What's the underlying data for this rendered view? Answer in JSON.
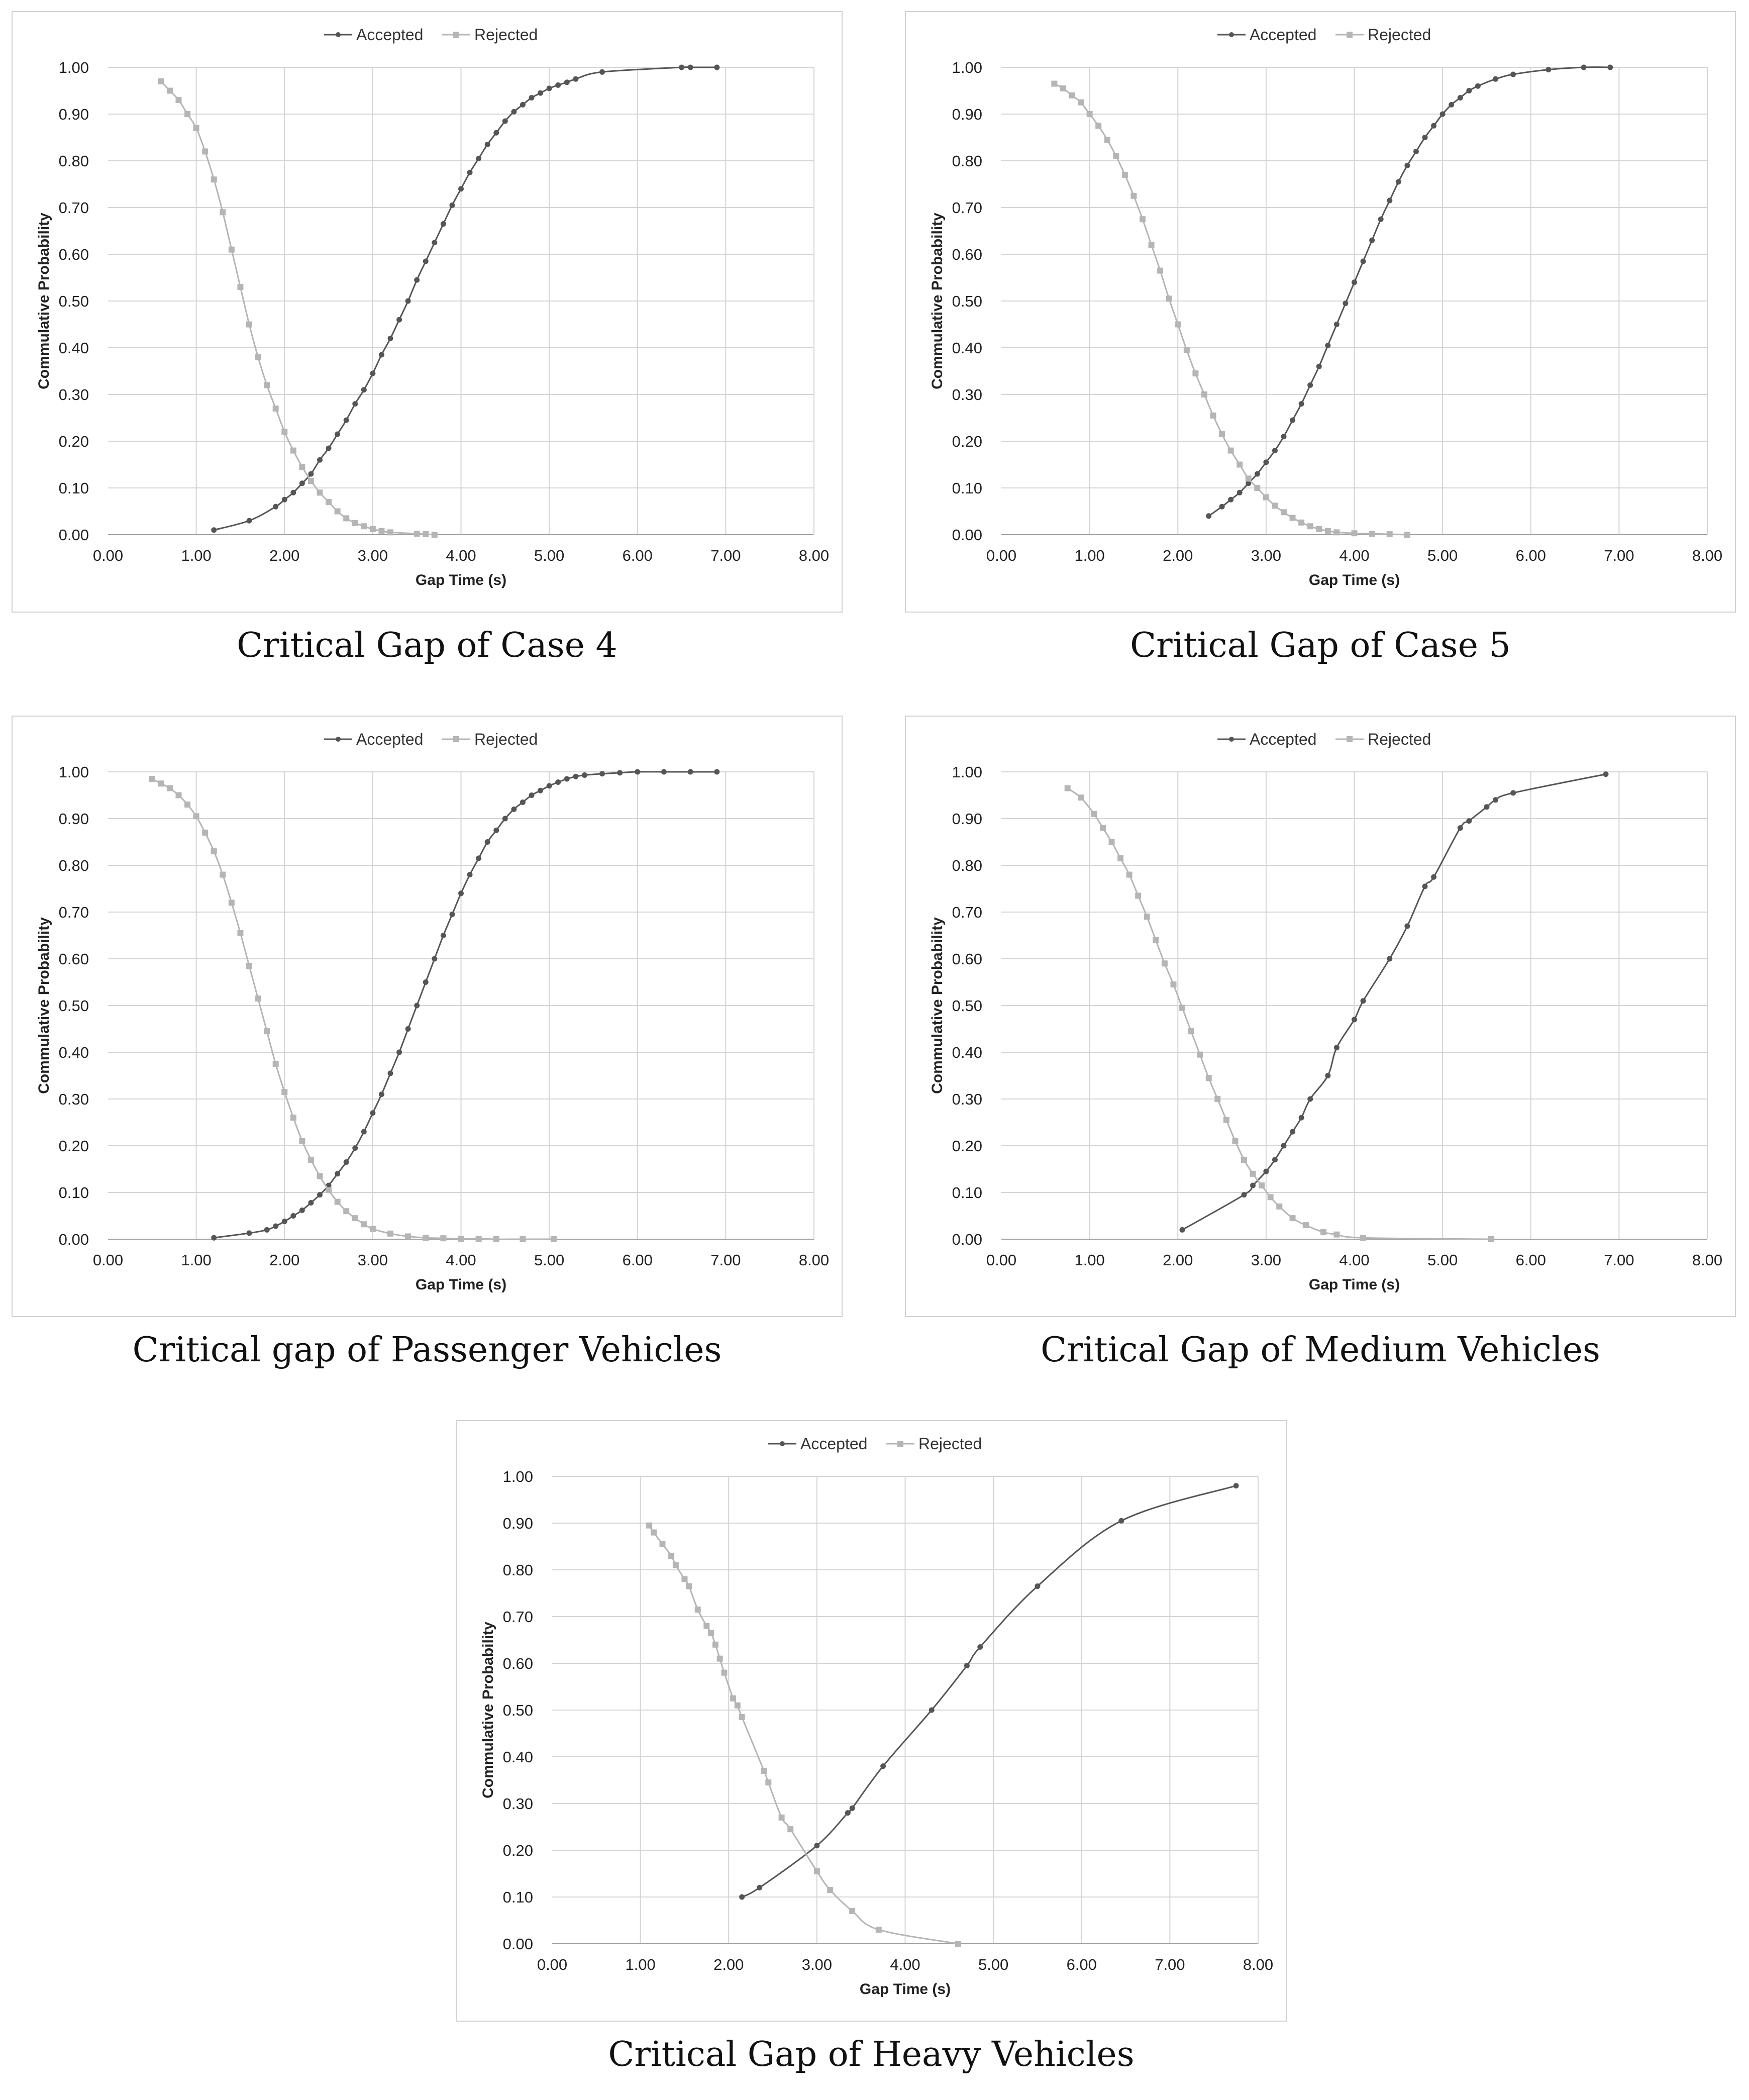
{
  "chart_data": [
    {
      "type": "line",
      "caption": "Critical Gap of Case 4",
      "xlabel": "Gap Time (s)",
      "ylabel": "Commulative Probability",
      "xlim": [
        0,
        8
      ],
      "ylim": [
        0,
        1
      ],
      "xticks": [
        "0.00",
        "1.00",
        "2.00",
        "3.00",
        "4.00",
        "5.00",
        "6.00",
        "7.00",
        "8.00"
      ],
      "yticks": [
        "0.00",
        "0.10",
        "0.20",
        "0.30",
        "0.40",
        "0.50",
        "0.60",
        "0.70",
        "0.80",
        "0.90",
        "1.00"
      ],
      "legend": [
        "Accepted",
        "Rejected"
      ],
      "series": [
        {
          "name": "Accepted",
          "color": "#555555",
          "x": [
            1.2,
            1.6,
            1.9,
            2.0,
            2.1,
            2.2,
            2.3,
            2.4,
            2.5,
            2.6,
            2.7,
            2.8,
            2.9,
            3.0,
            3.1,
            3.2,
            3.3,
            3.4,
            3.5,
            3.6,
            3.7,
            3.8,
            3.9,
            4.0,
            4.1,
            4.2,
            4.3,
            4.4,
            4.5,
            4.6,
            4.7,
            4.8,
            4.9,
            5.0,
            5.1,
            5.2,
            5.3,
            5.6,
            6.5,
            6.6,
            6.9
          ],
          "y": [
            0.01,
            0.03,
            0.06,
            0.075,
            0.09,
            0.11,
            0.13,
            0.16,
            0.185,
            0.215,
            0.245,
            0.28,
            0.31,
            0.345,
            0.385,
            0.42,
            0.46,
            0.5,
            0.545,
            0.585,
            0.625,
            0.665,
            0.705,
            0.74,
            0.775,
            0.805,
            0.835,
            0.86,
            0.885,
            0.905,
            0.92,
            0.935,
            0.945,
            0.955,
            0.962,
            0.968,
            0.975,
            0.99,
            1.0,
            1.0,
            1.0
          ]
        },
        {
          "name": "Rejected",
          "color": "#b5b5b5",
          "x": [
            0.6,
            0.7,
            0.8,
            0.9,
            1.0,
            1.1,
            1.2,
            1.3,
            1.4,
            1.5,
            1.6,
            1.7,
            1.8,
            1.9,
            2.0,
            2.1,
            2.2,
            2.3,
            2.4,
            2.5,
            2.6,
            2.7,
            2.8,
            2.9,
            3.0,
            3.1,
            3.2,
            3.5,
            3.6,
            3.7
          ],
          "y": [
            0.97,
            0.95,
            0.93,
            0.9,
            0.87,
            0.82,
            0.76,
            0.69,
            0.61,
            0.53,
            0.45,
            0.38,
            0.32,
            0.27,
            0.22,
            0.18,
            0.145,
            0.115,
            0.09,
            0.07,
            0.05,
            0.035,
            0.025,
            0.018,
            0.012,
            0.008,
            0.005,
            0.002,
            0.001,
            0.0
          ]
        }
      ]
    },
    {
      "type": "line",
      "caption": "Critical Gap of Case 5",
      "xlabel": "Gap Time (s)",
      "ylabel": "Commulative Probability",
      "xlim": [
        0,
        8
      ],
      "ylim": [
        0,
        1
      ],
      "xticks": [
        "0.00",
        "1.00",
        "2.00",
        "3.00",
        "4.00",
        "5.00",
        "6.00",
        "7.00",
        "8.00"
      ],
      "yticks": [
        "0.00",
        "0.10",
        "0.20",
        "0.30",
        "0.40",
        "0.50",
        "0.60",
        "0.70",
        "0.80",
        "0.90",
        "1.00"
      ],
      "legend": [
        "Accepted",
        "Rejected"
      ],
      "series": [
        {
          "name": "Accepted",
          "color": "#555555",
          "x": [
            2.35,
            2.5,
            2.6,
            2.7,
            2.8,
            2.9,
            3.0,
            3.1,
            3.2,
            3.3,
            3.4,
            3.5,
            3.6,
            3.7,
            3.8,
            3.9,
            4.0,
            4.1,
            4.2,
            4.3,
            4.4,
            4.5,
            4.6,
            4.7,
            4.8,
            4.9,
            5.0,
            5.1,
            5.2,
            5.3,
            5.4,
            5.6,
            5.8,
            6.2,
            6.6,
            6.9
          ],
          "y": [
            0.04,
            0.06,
            0.075,
            0.09,
            0.11,
            0.13,
            0.155,
            0.18,
            0.21,
            0.245,
            0.28,
            0.32,
            0.36,
            0.405,
            0.45,
            0.495,
            0.54,
            0.585,
            0.63,
            0.675,
            0.715,
            0.755,
            0.79,
            0.82,
            0.85,
            0.875,
            0.9,
            0.92,
            0.935,
            0.95,
            0.96,
            0.975,
            0.985,
            0.995,
            1.0,
            1.0
          ]
        },
        {
          "name": "Rejected",
          "color": "#b5b5b5",
          "x": [
            0.6,
            0.7,
            0.8,
            0.9,
            1.0,
            1.1,
            1.2,
            1.3,
            1.4,
            1.5,
            1.6,
            1.7,
            1.8,
            1.9,
            2.0,
            2.1,
            2.2,
            2.3,
            2.4,
            2.5,
            2.6,
            2.7,
            2.8,
            2.9,
            3.0,
            3.1,
            3.2,
            3.3,
            3.4,
            3.5,
            3.6,
            3.7,
            3.8,
            4.0,
            4.2,
            4.4,
            4.6
          ],
          "y": [
            0.965,
            0.955,
            0.94,
            0.925,
            0.9,
            0.875,
            0.845,
            0.81,
            0.77,
            0.725,
            0.675,
            0.62,
            0.565,
            0.505,
            0.45,
            0.395,
            0.345,
            0.3,
            0.255,
            0.215,
            0.18,
            0.15,
            0.12,
            0.1,
            0.08,
            0.062,
            0.048,
            0.036,
            0.026,
            0.018,
            0.012,
            0.008,
            0.005,
            0.003,
            0.002,
            0.001,
            0.0
          ]
        }
      ]
    },
    {
      "type": "line",
      "caption": "Critical gap of Passenger Vehicles",
      "xlabel": "Gap Time (s)",
      "ylabel": "Commulative Probability",
      "xlim": [
        0,
        8
      ],
      "ylim": [
        0,
        1
      ],
      "xticks": [
        "0.00",
        "1.00",
        "2.00",
        "3.00",
        "4.00",
        "5.00",
        "6.00",
        "7.00",
        "8.00"
      ],
      "yticks": [
        "0.00",
        "0.10",
        "0.20",
        "0.30",
        "0.40",
        "0.50",
        "0.60",
        "0.70",
        "0.80",
        "0.90",
        "1.00"
      ],
      "legend": [
        "Accepted",
        "Rejected"
      ],
      "series": [
        {
          "name": "Accepted",
          "color": "#555555",
          "x": [
            1.2,
            1.6,
            1.8,
            1.9,
            2.0,
            2.1,
            2.2,
            2.3,
            2.4,
            2.5,
            2.6,
            2.7,
            2.8,
            2.9,
            3.0,
            3.1,
            3.2,
            3.3,
            3.4,
            3.5,
            3.6,
            3.7,
            3.8,
            3.9,
            4.0,
            4.1,
            4.2,
            4.3,
            4.4,
            4.5,
            4.6,
            4.7,
            4.8,
            4.9,
            5.0,
            5.1,
            5.2,
            5.3,
            5.4,
            5.6,
            5.8,
            6.0,
            6.3,
            6.6,
            6.9
          ],
          "y": [
            0.003,
            0.013,
            0.02,
            0.028,
            0.038,
            0.05,
            0.062,
            0.078,
            0.095,
            0.115,
            0.14,
            0.165,
            0.195,
            0.23,
            0.27,
            0.31,
            0.355,
            0.4,
            0.45,
            0.5,
            0.55,
            0.6,
            0.65,
            0.695,
            0.74,
            0.78,
            0.815,
            0.85,
            0.875,
            0.9,
            0.92,
            0.935,
            0.95,
            0.96,
            0.97,
            0.978,
            0.985,
            0.99,
            0.993,
            0.996,
            0.998,
            1.0,
            1.0,
            1.0,
            1.0
          ]
        },
        {
          "name": "Rejected",
          "color": "#b5b5b5",
          "x": [
            0.5,
            0.6,
            0.7,
            0.8,
            0.9,
            1.0,
            1.1,
            1.2,
            1.3,
            1.4,
            1.5,
            1.6,
            1.7,
            1.8,
            1.9,
            2.0,
            2.1,
            2.2,
            2.3,
            2.4,
            2.5,
            2.6,
            2.7,
            2.8,
            2.9,
            3.0,
            3.2,
            3.4,
            3.6,
            3.8,
            4.0,
            4.2,
            4.4,
            4.7,
            5.05
          ],
          "y": [
            0.985,
            0.975,
            0.965,
            0.95,
            0.93,
            0.905,
            0.87,
            0.83,
            0.78,
            0.72,
            0.655,
            0.585,
            0.515,
            0.445,
            0.375,
            0.315,
            0.26,
            0.21,
            0.17,
            0.135,
            0.105,
            0.08,
            0.06,
            0.045,
            0.032,
            0.022,
            0.012,
            0.006,
            0.003,
            0.002,
            0.001,
            0.001,
            0.0,
            0.0,
            0.0
          ]
        }
      ]
    },
    {
      "type": "line",
      "caption": "Critical Gap of Medium Vehicles",
      "xlabel": "Gap Time (s)",
      "ylabel": "Commulative Probability",
      "xlim": [
        0,
        8
      ],
      "ylim": [
        0,
        1
      ],
      "xticks": [
        "0.00",
        "1.00",
        "2.00",
        "3.00",
        "4.00",
        "5.00",
        "6.00",
        "7.00",
        "8.00"
      ],
      "yticks": [
        "0.00",
        "0.10",
        "0.20",
        "0.30",
        "0.40",
        "0.50",
        "0.60",
        "0.70",
        "0.80",
        "0.90",
        "1.00"
      ],
      "legend": [
        "Accepted",
        "Rejected"
      ],
      "series": [
        {
          "name": "Accepted",
          "color": "#555555",
          "x": [
            2.05,
            2.75,
            2.85,
            3.0,
            3.1,
            3.2,
            3.3,
            3.4,
            3.5,
            3.7,
            3.8,
            4.0,
            4.1,
            4.4,
            4.6,
            4.8,
            4.9,
            5.2,
            5.3,
            5.5,
            5.6,
            5.8,
            6.85
          ],
          "y": [
            0.02,
            0.095,
            0.115,
            0.145,
            0.17,
            0.2,
            0.23,
            0.26,
            0.3,
            0.35,
            0.41,
            0.47,
            0.51,
            0.6,
            0.67,
            0.755,
            0.775,
            0.88,
            0.895,
            0.925,
            0.94,
            0.955,
            0.995
          ]
        },
        {
          "name": "Rejected",
          "color": "#b5b5b5",
          "x": [
            0.75,
            0.9,
            1.05,
            1.15,
            1.25,
            1.35,
            1.45,
            1.55,
            1.65,
            1.75,
            1.85,
            1.95,
            2.05,
            2.15,
            2.25,
            2.35,
            2.45,
            2.55,
            2.65,
            2.75,
            2.85,
            2.95,
            3.05,
            3.15,
            3.3,
            3.45,
            3.65,
            3.8,
            4.1,
            5.55
          ],
          "y": [
            0.965,
            0.945,
            0.91,
            0.88,
            0.85,
            0.815,
            0.78,
            0.735,
            0.69,
            0.64,
            0.59,
            0.545,
            0.495,
            0.445,
            0.395,
            0.345,
            0.3,
            0.255,
            0.21,
            0.17,
            0.14,
            0.115,
            0.09,
            0.07,
            0.045,
            0.03,
            0.015,
            0.01,
            0.003,
            0.0
          ]
        }
      ]
    },
    {
      "type": "line",
      "caption": "Critical Gap of Heavy Vehicles",
      "xlabel": "Gap Time (s)",
      "ylabel": "Commulative Probability",
      "xlim": [
        0,
        8
      ],
      "ylim": [
        0,
        1
      ],
      "xticks": [
        "0.00",
        "1.00",
        "2.00",
        "3.00",
        "4.00",
        "5.00",
        "6.00",
        "7.00",
        "8.00"
      ],
      "yticks": [
        "0.00",
        "0.10",
        "0.20",
        "0.30",
        "0.40",
        "0.50",
        "0.60",
        "0.70",
        "0.80",
        "0.90",
        "1.00"
      ],
      "legend": [
        "Accepted",
        "Rejected"
      ],
      "series": [
        {
          "name": "Accepted",
          "color": "#555555",
          "x": [
            2.15,
            2.35,
            3.0,
            3.35,
            3.4,
            3.75,
            4.3,
            4.7,
            4.85,
            5.5,
            6.45,
            7.75
          ],
          "y": [
            0.1,
            0.12,
            0.21,
            0.28,
            0.29,
            0.38,
            0.5,
            0.595,
            0.635,
            0.765,
            0.905,
            0.98
          ]
        },
        {
          "name": "Rejected",
          "color": "#b5b5b5",
          "x": [
            1.1,
            1.15,
            1.25,
            1.35,
            1.4,
            1.5,
            1.55,
            1.65,
            1.75,
            1.8,
            1.85,
            1.9,
            1.95,
            2.05,
            2.1,
            2.15,
            2.4,
            2.45,
            2.6,
            2.7,
            3.0,
            3.15,
            3.4,
            3.7,
            4.6
          ],
          "y": [
            0.895,
            0.88,
            0.855,
            0.83,
            0.81,
            0.78,
            0.765,
            0.715,
            0.68,
            0.665,
            0.64,
            0.61,
            0.58,
            0.525,
            0.51,
            0.485,
            0.37,
            0.345,
            0.27,
            0.245,
            0.155,
            0.115,
            0.07,
            0.03,
            0.0
          ]
        }
      ]
    }
  ]
}
